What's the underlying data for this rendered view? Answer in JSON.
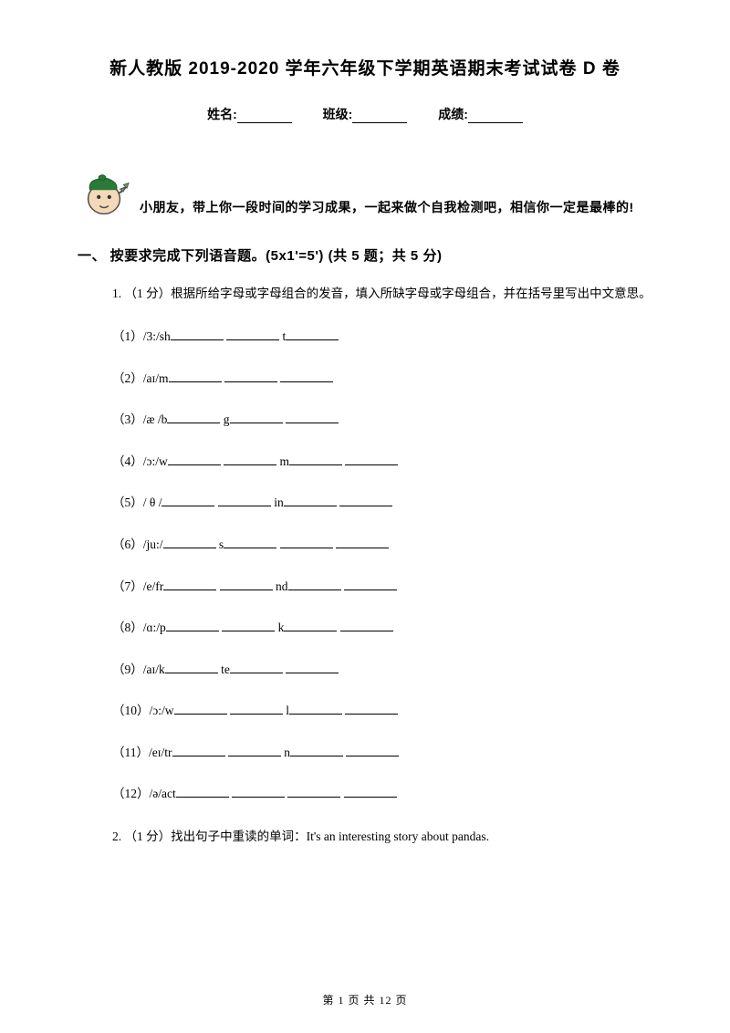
{
  "title": "新人教版 2019-2020 学年六年级下学期英语期末考试试卷 D 卷",
  "info": {
    "name_label": "姓名:",
    "class_label": "班级:",
    "score_label": "成绩:"
  },
  "intro": "小朋友，带上你一段时间的学习成果，一起来做个自我检测吧，相信你一定是最棒的!",
  "section1": {
    "heading": "一、 按要求完成下列语音题。(5x1'=5') (共 5 题；共 5 分)",
    "q1": {
      "instruction": "1. （1 分）根据所给字母或字母组合的发音，填入所缺字母或字母组合，并在括号里写出中文意思。",
      "items": [
        {
          "n": "（1）",
          "pre": "/3:/sh",
          "seg": [
            "",
            "",
            "t",
            ""
          ]
        },
        {
          "n": "（2）",
          "pre": "/aɪ/m",
          "seg": [
            "",
            "",
            ""
          ]
        },
        {
          "n": "（3）",
          "pre": "/æ /b",
          "seg": [
            "",
            "g",
            "",
            ""
          ]
        },
        {
          "n": "（4）",
          "pre": "/ɔ:/w",
          "seg": [
            "",
            "",
            "m",
            "",
            ""
          ]
        },
        {
          "n": "（5）",
          "pre": "/ θ /",
          "seg": [
            "",
            "",
            "in",
            "",
            ""
          ]
        },
        {
          "n": "（6）",
          "pre": "/ju:/",
          "seg": [
            "",
            "s",
            "",
            "",
            ""
          ]
        },
        {
          "n": "（7）",
          "pre": "/e/fr",
          "seg": [
            "",
            "",
            "nd",
            "",
            ""
          ]
        },
        {
          "n": "（8）",
          "pre": "/ɑ:/p",
          "seg": [
            "",
            "",
            "k",
            "",
            ""
          ]
        },
        {
          "n": "（9）",
          "pre": "/aɪ/k",
          "seg": [
            "",
            "te",
            "",
            ""
          ]
        },
        {
          "n": "（10）",
          "pre": "/ɔ:/w",
          "seg": [
            "",
            "",
            "l",
            "",
            ""
          ]
        },
        {
          "n": "（11）",
          "pre": "/eɪ/tr",
          "seg": [
            "",
            "",
            "n",
            "",
            ""
          ]
        },
        {
          "n": "（12）",
          "pre": "/ə/act",
          "seg": [
            "",
            "",
            "",
            ""
          ]
        }
      ]
    },
    "q2": "2. （1 分）找出句子中重读的单词：It's an interesting story about pandas."
  },
  "footer": "第 1 页 共 12 页",
  "colors": {
    "text": "#000000",
    "background": "#ffffff",
    "mascot_body": "#f4d9b8",
    "mascot_hat": "#2a7a3a",
    "mascot_outline": "#4a4a4a"
  }
}
